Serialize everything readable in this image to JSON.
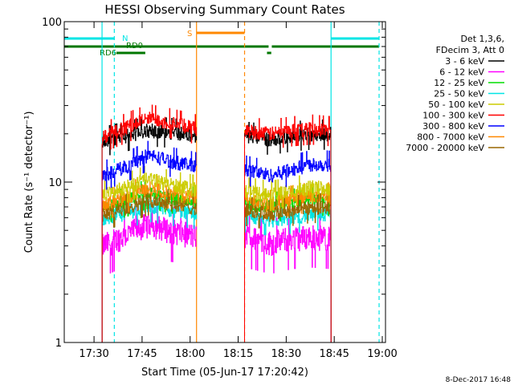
{
  "chart_data": {
    "type": "line",
    "title": "HESSI Observing Summary Count Rates",
    "xlabel": "Start Time (05-Jun-17 17:20:42)",
    "ylabel": "Count Rate (s⁻¹ detector⁻¹)",
    "yscale": "log",
    "ylim": [
      1,
      100
    ],
    "xlim": [
      "17:20:42",
      "19:01:00"
    ],
    "x_ticks": [
      "17:30",
      "17:45",
      "18:00",
      "18:15",
      "18:30",
      "18:45",
      "19:00"
    ],
    "y_ticks": [
      "1",
      "10",
      "100"
    ],
    "legend_header": [
      "Det 1,3,6,",
      "FDecim 3, Att 0"
    ],
    "legend_position": "right",
    "data_gaps": [
      [
        "17:20:42",
        "17:32:30"
      ],
      [
        "18:02:00",
        "18:17:00"
      ],
      [
        "18:44:00",
        "19:01:00"
      ]
    ],
    "series": [
      {
        "name": "3 - 6 keV",
        "color": "#000000",
        "segments": [
          {
            "x": [
              "17:32:30",
              "17:40:00",
              "17:47:00",
              "17:54:00",
              "18:02:00"
            ],
            "y": [
              18,
              19.5,
              21,
              20.5,
              19.5
            ]
          },
          {
            "x": [
              "18:17:00",
              "18:25:00",
              "18:32:00",
              "18:38:00",
              "18:44:00"
            ],
            "y": [
              19.5,
              18.5,
              19.5,
              20,
              20
            ]
          }
        ]
      },
      {
        "name": "6 - 12 keV",
        "color": "#ff00ff",
        "segments": [
          {
            "x": [
              "17:32:30",
              "17:40:00",
              "17:47:00",
              "17:54:00",
              "18:02:00"
            ],
            "y": [
              4.0,
              4.7,
              5.5,
              5.0,
              4.6
            ]
          },
          {
            "x": [
              "18:17:00",
              "18:25:00",
              "18:32:00",
              "18:38:00",
              "18:44:00"
            ],
            "y": [
              4.6,
              4.2,
              4.5,
              4.6,
              4.5
            ]
          }
        ]
      },
      {
        "name": "12 - 25 keV",
        "color": "#00dd00",
        "segments": [
          {
            "x": [
              "17:32:30",
              "17:40:00",
              "17:47:00",
              "17:54:00",
              "18:02:00"
            ],
            "y": [
              6.8,
              7.6,
              8.6,
              8.0,
              7.6
            ]
          },
          {
            "x": [
              "18:17:00",
              "18:25:00",
              "18:32:00",
              "18:38:00",
              "18:44:00"
            ],
            "y": [
              7.4,
              7.0,
              7.4,
              7.8,
              7.7
            ]
          }
        ]
      },
      {
        "name": "25 - 50 keV",
        "color": "#00e5e5",
        "segments": [
          {
            "x": [
              "17:32:30",
              "17:40:00",
              "17:47:00",
              "17:54:00",
              "18:02:00"
            ],
            "y": [
              5.8,
              6.4,
              7.1,
              6.7,
              6.4
            ]
          },
          {
            "x": [
              "18:17:00",
              "18:25:00",
              "18:32:00",
              "18:38:00",
              "18:44:00"
            ],
            "y": [
              6.1,
              5.8,
              6.0,
              6.3,
              6.2
            ]
          }
        ]
      },
      {
        "name": "50 - 100 keV",
        "color": "#cccc00",
        "segments": [
          {
            "x": [
              "17:32:30",
              "17:40:00",
              "17:47:00",
              "17:54:00",
              "18:02:00"
            ],
            "y": [
              8.2,
              9.3,
              10.5,
              9.6,
              9.0
            ]
          },
          {
            "x": [
              "18:17:00",
              "18:25:00",
              "18:32:00",
              "18:38:00",
              "18:44:00"
            ],
            "y": [
              8.8,
              8.3,
              8.8,
              9.3,
              9.1
            ]
          }
        ]
      },
      {
        "name": "100 - 300 keV",
        "color": "#ff0000",
        "segments": [
          {
            "x": [
              "17:32:30",
              "17:40:00",
              "17:47:00",
              "17:54:00",
              "18:02:00"
            ],
            "y": [
              19,
              22,
              25,
              23.5,
              21.5
            ]
          },
          {
            "x": [
              "18:17:00",
              "18:25:00",
              "18:32:00",
              "18:38:00",
              "18:44:00"
            ],
            "y": [
              21,
              20,
              21,
              21.5,
              21
            ]
          }
        ]
      },
      {
        "name": "300 - 800 keV",
        "color": "#0000ff",
        "segments": [
          {
            "x": [
              "17:32:30",
              "17:40:00",
              "17:47:00",
              "17:54:00",
              "18:02:00"
            ],
            "y": [
              11,
              12.5,
              14.8,
              13.5,
              12.5
            ]
          },
          {
            "x": [
              "18:17:00",
              "18:25:00",
              "18:32:00",
              "18:38:00",
              "18:44:00"
            ],
            "y": [
              12,
              11,
              12,
              13,
              12.8
            ]
          }
        ]
      },
      {
        "name": "800 - 7000 keV",
        "color": "#ff8800",
        "segments": [
          {
            "x": [
              "17:32:30",
              "17:40:00",
              "17:47:00",
              "17:54:00",
              "18:02:00"
            ],
            "y": [
              7.2,
              8.0,
              9.2,
              8.5,
              8.0
            ]
          },
          {
            "x": [
              "18:17:00",
              "18:25:00",
              "18:32:00",
              "18:38:00",
              "18:44:00"
            ],
            "y": [
              7.8,
              7.3,
              7.8,
              8.2,
              8.1
            ]
          }
        ]
      },
      {
        "name": "7000 - 20000 keV",
        "color": "#996600",
        "segments": [
          {
            "x": [
              "17:32:30",
              "17:40:00",
              "17:47:00",
              "17:54:00",
              "18:02:00"
            ],
            "y": [
              6.2,
              6.9,
              7.8,
              7.3,
              6.9
            ]
          },
          {
            "x": [
              "18:17:00",
              "18:25:00",
              "18:32:00",
              "18:38:00",
              "18:44:00"
            ],
            "y": [
              6.7,
              6.3,
              6.7,
              7.0,
              6.9
            ]
          }
        ]
      }
    ],
    "vertical_markers": [
      {
        "time": "17:32:30",
        "color": "#00e5e5",
        "style": "solid"
      },
      {
        "time": "17:36:20",
        "color": "#00e5e5",
        "style": "dashed"
      },
      {
        "time": "18:02:00",
        "color": "#ff8800",
        "style": "solid"
      },
      {
        "time": "18:17:00",
        "color": "#ff8800",
        "style": "dashed"
      },
      {
        "time": "18:44:00",
        "color": "#00e5e5",
        "style": "solid"
      },
      {
        "time": "18:59:00",
        "color": "#00e5e5",
        "style": "dashed"
      }
    ],
    "flag_bars": [
      {
        "label": "N",
        "color": "#00e5e5",
        "segments": [
          [
            "17:20:42",
            "17:36:20"
          ],
          [
            "18:44:00",
            "18:59:00"
          ]
        ]
      },
      {
        "label": "S",
        "color": "#ff8800",
        "segments": [
          [
            "18:02:00",
            "18:17:00"
          ]
        ]
      },
      {
        "label": "RD0",
        "color": "#007700",
        "segments": [
          [
            "17:20:42",
            "18:24:30"
          ],
          [
            "18:25:30",
            "18:59:00"
          ]
        ]
      },
      {
        "label": "RD6",
        "color": "#007700",
        "segments": [
          [
            "17:37:00",
            "17:46:00"
          ],
          [
            "18:24:00",
            "18:25:20"
          ]
        ]
      }
    ]
  },
  "footer": {
    "date_stamp": "8-Dec-2017 16:48"
  }
}
